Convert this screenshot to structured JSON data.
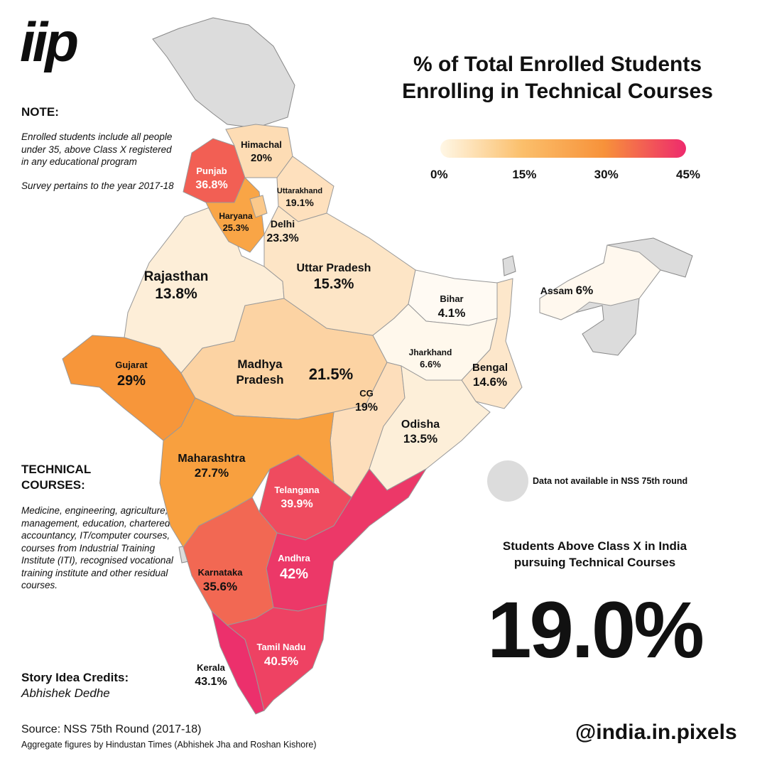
{
  "brand": {
    "logo": "iip",
    "handle": "@india.in.pixels"
  },
  "title_line1": "% of Total Enrolled Students",
  "title_line2": "Enrolling in Technical Courses",
  "legend": {
    "ticks": [
      "0%",
      "15%",
      "30%",
      "45%"
    ],
    "tick_values": [
      0,
      15,
      30,
      45
    ],
    "colors": [
      "#fff7e6",
      "#fbbf6b",
      "#f7923a",
      "#ee2a6d"
    ],
    "min": 0,
    "max": 45
  },
  "note": {
    "heading": "NOTE:",
    "text1": "Enrolled students include all people under 35, above Class X registered in any educational program",
    "text2": "Survey pertains to the year 2017-18"
  },
  "technical": {
    "heading": "TECHNICAL COURSES:",
    "text": "Medicine, engineering, agriculture, law, management, education, chartered accountancy, IT/computer courses, courses from Industrial Training Institute (ITI), recognised vocational training institute and other residual courses."
  },
  "credits": {
    "heading": "Story Idea Credits:",
    "name": "Abhishek Dedhe"
  },
  "source": {
    "line1": "Source: NSS 75th Round (2017-18)",
    "line2": "Aggregate figures by Hindustan Times (Abhishek Jha and Roshan Kishore)"
  },
  "na_legend": {
    "label": "Data not available in NSS 75th round",
    "color": "#dcdcdc"
  },
  "stat": {
    "heading_line1": "Students Above Class X in India",
    "heading_line2": "pursuing Technical Courses",
    "value": "19.0%"
  },
  "map_data": {
    "regions": [
      {
        "id": "punjab",
        "name": "Punjab",
        "value": 36.8,
        "label": "36.8%",
        "color": "#f25f54"
      },
      {
        "id": "himachal",
        "name": "Himachal",
        "value": 20,
        "label": "20%",
        "color": "#fddcb4"
      },
      {
        "id": "uttarakhand",
        "name": "Uttarakhand",
        "value": 19.1,
        "label": "19.1%",
        "color": "#fee0bd"
      },
      {
        "id": "haryana",
        "name": "Haryana",
        "value": 25.3,
        "label": "25.3%",
        "color": "#f9a546"
      },
      {
        "id": "delhi",
        "name": "Delhi",
        "value": 23.3,
        "label": "23.3%",
        "color": "#fbc98b"
      },
      {
        "id": "rajasthan",
        "name": "Rajasthan",
        "value": 13.8,
        "label": "13.8%",
        "color": "#fdeed8"
      },
      {
        "id": "uttar_pradesh",
        "name": "Uttar Pradesh",
        "value": 15.3,
        "label": "15.3%",
        "color": "#fde5c6"
      },
      {
        "id": "bihar",
        "name": "Bihar",
        "value": 4.1,
        "label": "4.1%",
        "color": "#fffaf3"
      },
      {
        "id": "assam",
        "name": "Assam",
        "value": 6,
        "label": "6%",
        "color": "#fff8ee"
      },
      {
        "id": "jharkhand",
        "name": "Jharkhand",
        "value": 6.6,
        "label": "6.6%",
        "color": "#fff8ec"
      },
      {
        "id": "bengal",
        "name": "Bengal",
        "value": 14.6,
        "label": "14.6%",
        "color": "#fde7cb"
      },
      {
        "id": "gujarat",
        "name": "Gujarat",
        "value": 29,
        "label": "29%",
        "color": "#f7963a"
      },
      {
        "id": "madhya_pradesh",
        "name_line1": "Madhya",
        "name_line2": "Pradesh",
        "value": 21.5,
        "label": "21.5%",
        "color": "#fcd3a3"
      },
      {
        "id": "cg",
        "name": "CG",
        "value": 19,
        "label": "19%",
        "color": "#fddebb"
      },
      {
        "id": "odisha",
        "name": "Odisha",
        "value": 13.5,
        "label": "13.5%",
        "color": "#fdefd9"
      },
      {
        "id": "maharashtra",
        "name": "Maharashtra",
        "value": 27.7,
        "label": "27.7%",
        "color": "#f8a03f"
      },
      {
        "id": "telangana",
        "name": "Telangana",
        "value": 39.9,
        "label": "39.9%",
        "color": "#ef4b5f"
      },
      {
        "id": "andhra",
        "name": "Andhra",
        "value": 42,
        "label": "42%",
        "color": "#ec3868"
      },
      {
        "id": "karnataka",
        "name": "Karnataka",
        "value": 35.6,
        "label": "35.6%",
        "color": "#f26853"
      },
      {
        "id": "tamil_nadu",
        "name": "Tamil Nadu",
        "value": 40.5,
        "label": "40.5%",
        "color": "#ee4263"
      },
      {
        "id": "kerala",
        "name": "Kerala",
        "value": 43.1,
        "label": "43.1%",
        "color": "#ec306c"
      }
    ]
  }
}
